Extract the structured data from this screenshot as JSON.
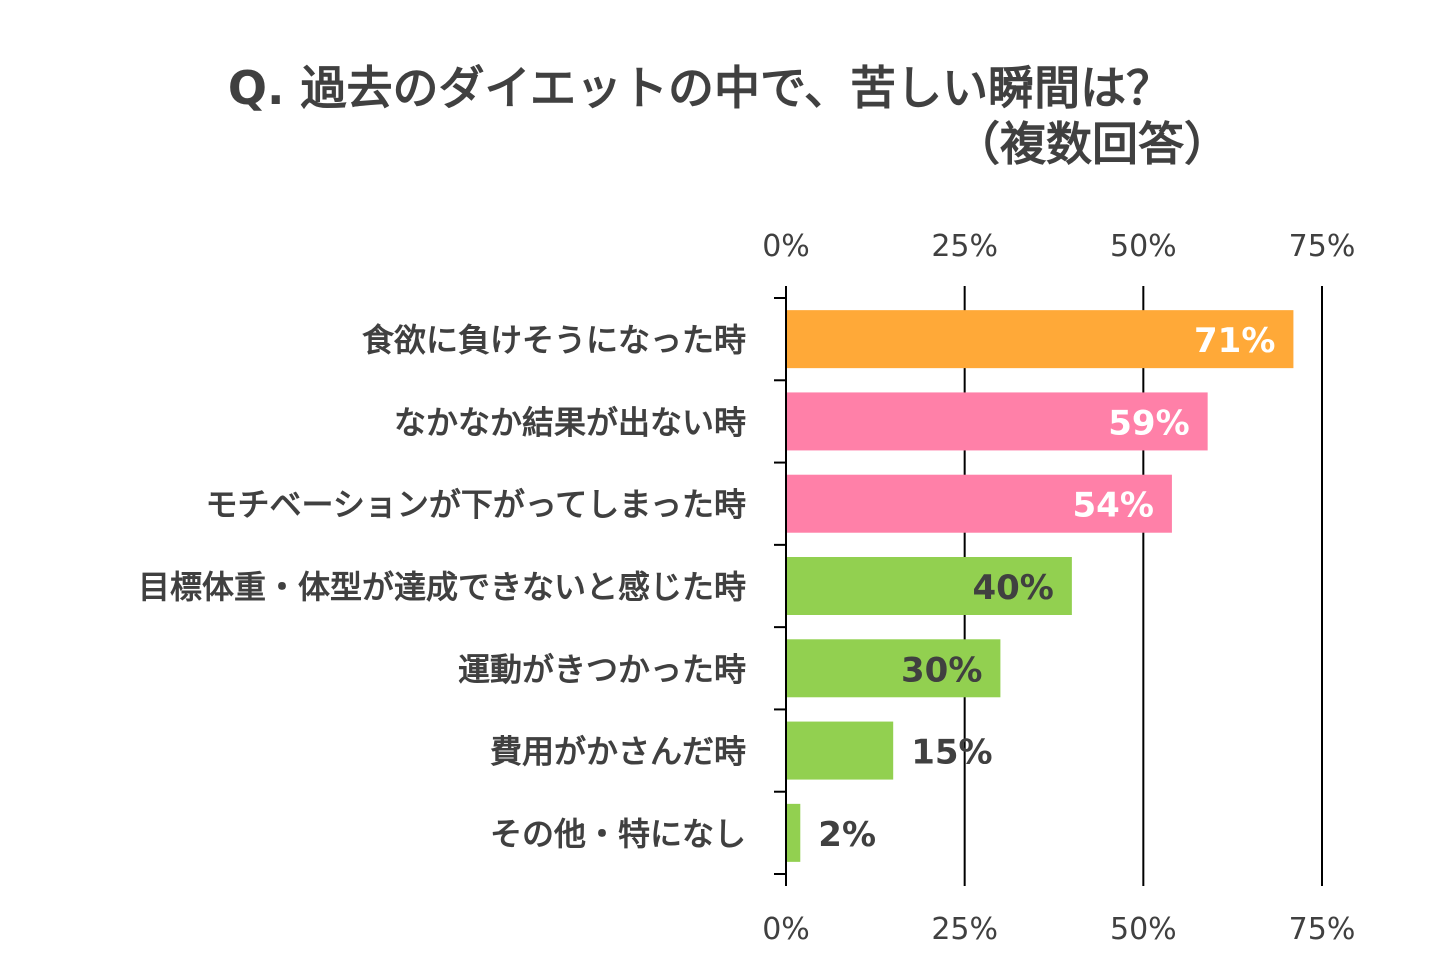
{
  "chart_data": {
    "type": "bar",
    "orientation": "horizontal",
    "title_line1": "Q. 過去のダイエットの中で、苦しい瞬間は？",
    "title_line2": "（複数回答）",
    "categories": [
      "食欲に負けそうになった時",
      "なかなか結果が出ない時",
      "モチベーションが下がってしまった時",
      "目標体重・体型が達成できないと感じた時",
      "運動がきつかった時",
      "費用がかさんだ時",
      "その他・特になし"
    ],
    "values": [
      71,
      59,
      54,
      40,
      30,
      15,
      2
    ],
    "data_labels": [
      "71%",
      "59%",
      "54%",
      "40%",
      "30%",
      "15%",
      "2%"
    ],
    "bar_colors": [
      "#FFA938",
      "#FF80A8",
      "#FF80A8",
      "#92D050",
      "#92D050",
      "#92D050",
      "#92D050"
    ],
    "label_colors": [
      "#ffffff",
      "#ffffff",
      "#ffffff",
      "#404040",
      "#404040",
      "#404040",
      "#404040"
    ],
    "xlim": [
      0,
      75
    ],
    "ticks": [
      0,
      25,
      50,
      75
    ],
    "tick_labels": [
      "0%",
      "25%",
      "50%",
      "75%"
    ],
    "xlabel": "",
    "ylabel": "",
    "grid": true,
    "axis_color": "#000000"
  }
}
